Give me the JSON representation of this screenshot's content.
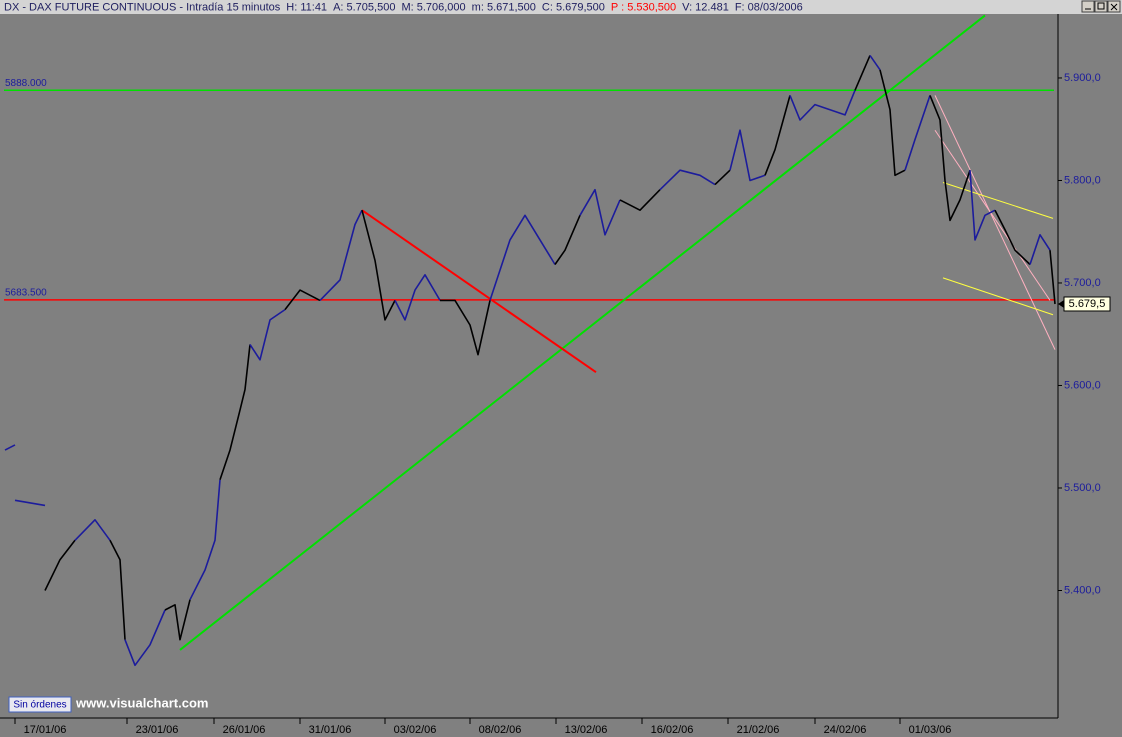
{
  "chart_data": {
    "type": "line",
    "title": "DX - DAX FUTURE CONTINUOUS - Intradía 15 minutos",
    "stats": [
      {
        "text": "H: 11:41",
        "color": "#202060"
      },
      {
        "text": "A: 5.705,500",
        "color": "#202060"
      },
      {
        "text": "M: 5.706,000",
        "color": "#202060"
      },
      {
        "text": "m: 5.671,500",
        "color": "#202060"
      },
      {
        "text": "C: 5.679,500",
        "color": "#202060"
      },
      {
        "text": "P : 5.530,500",
        "color": "#ff0000"
      },
      {
        "text": "V: 12.481",
        "color": "#202060"
      },
      {
        "text": "F: 08/03/2006",
        "color": "#202060"
      }
    ],
    "xlim": [
      0,
      105.7
    ],
    "ylim": [
      5275.6,
      5962.4
    ],
    "xticks": [
      {
        "value": 4.5,
        "label": "17/01/06"
      },
      {
        "value": 15.7,
        "label": "23/01/06"
      },
      {
        "value": 24.4,
        "label": "26/01/06"
      },
      {
        "value": 33.0,
        "label": "31/01/06"
      },
      {
        "value": 41.5,
        "label": "03/02/06"
      },
      {
        "value": 50.0,
        "label": "08/02/06"
      },
      {
        "value": 58.6,
        "label": "13/02/06"
      },
      {
        "value": 67.2,
        "label": "16/02/06"
      },
      {
        "value": 75.8,
        "label": "21/02/06"
      },
      {
        "value": 84.5,
        "label": "24/02/06"
      },
      {
        "value": 93.0,
        "label": "01/03/06"
      }
    ],
    "yticks": [
      {
        "value": 5400,
        "label": "5.400,0"
      },
      {
        "value": 5500,
        "label": "5.500,0"
      },
      {
        "value": 5600,
        "label": "5.600,0"
      },
      {
        "value": 5700,
        "label": "5.700,0"
      },
      {
        "value": 5800,
        "label": "5.800,0"
      },
      {
        "value": 5900,
        "label": "5.900,0"
      }
    ],
    "last_price": {
      "value": 5679.5,
      "label": "5.679,5"
    },
    "series": [
      {
        "color": "#1c1c9c",
        "x": [
          0.5,
          1.5
        ],
        "values": [
          5537,
          5542
        ]
      },
      {
        "color": "#1c1c9c",
        "x": [
          1.5,
          4.5
        ],
        "values": [
          5488,
          5483
        ]
      },
      {
        "color": "#000000",
        "x": [
          4.5,
          6.0,
          7.5
        ],
        "values": [
          5400,
          5430,
          5449
        ]
      },
      {
        "color": "#1c1c9c",
        "x": [
          7.5,
          9.5,
          11.0
        ],
        "values": [
          5449,
          5469,
          5449
        ]
      },
      {
        "color": "#000000",
        "x": [
          11.0,
          12.0,
          12.5
        ],
        "values": [
          5449,
          5430,
          5352
        ]
      },
      {
        "color": "#1c1c9c",
        "x": [
          12.5,
          13.5,
          15.0,
          16.5
        ],
        "values": [
          5352,
          5327,
          5347,
          5381
        ]
      },
      {
        "color": "#000000",
        "x": [
          16.5,
          17.5,
          18.0,
          19.0
        ],
        "values": [
          5381,
          5386,
          5352,
          5391
        ]
      },
      {
        "color": "#1c1c9c",
        "x": [
          19.0,
          20.5,
          21.5,
          22.0
        ],
        "values": [
          5391,
          5420,
          5449,
          5508
        ]
      },
      {
        "color": "#000000",
        "x": [
          22.0,
          23.0,
          24.0,
          24.5,
          25.0
        ],
        "values": [
          5508,
          5537,
          5576,
          5596,
          5640
        ]
      },
      {
        "color": "#1c1c9c",
        "x": [
          25.0,
          26.0,
          27.0,
          28.5
        ],
        "values": [
          5640,
          5625,
          5664,
          5674
        ]
      },
      {
        "color": "#000000",
        "x": [
          28.5,
          30.0,
          32.0
        ],
        "values": [
          5674,
          5693,
          5683
        ]
      },
      {
        "color": "#1c1c9c",
        "x": [
          32.0,
          34.0,
          35.5,
          36.2
        ],
        "values": [
          5683,
          5703,
          5757,
          5771
        ]
      },
      {
        "color": "#000000",
        "x": [
          36.2,
          37.5,
          38.5,
          39.5
        ],
        "values": [
          5771,
          5722,
          5664,
          5683
        ]
      },
      {
        "color": "#1c1c9c",
        "x": [
          39.5,
          40.5,
          41.5,
          42.5,
          44.0
        ],
        "values": [
          5683,
          5664,
          5693,
          5708,
          5683
        ]
      },
      {
        "color": "#000000",
        "x": [
          44.0,
          45.5,
          47.0,
          47.8,
          49.0
        ],
        "values": [
          5683,
          5683,
          5659,
          5630,
          5683
        ]
      },
      {
        "color": "#1c1c9c",
        "x": [
          49.0,
          51.0,
          52.5,
          54.0,
          55.5
        ],
        "values": [
          5683,
          5742,
          5766,
          5742,
          5718
        ]
      },
      {
        "color": "#000000",
        "x": [
          55.5,
          56.5,
          58.0
        ],
        "values": [
          5718,
          5732,
          5766
        ]
      },
      {
        "color": "#1c1c9c",
        "x": [
          58.0,
          59.5,
          60.5,
          62.0
        ],
        "values": [
          5766,
          5791,
          5747,
          5781
        ]
      },
      {
        "color": "#000000",
        "x": [
          62.0,
          64.0,
          66.0
        ],
        "values": [
          5781,
          5771,
          5791
        ]
      },
      {
        "color": "#1c1c9c",
        "x": [
          66.0,
          68.0,
          70.0,
          71.5
        ],
        "values": [
          5791,
          5810,
          5805,
          5796
        ]
      },
      {
        "color": "#000000",
        "x": [
          71.5,
          73.0
        ],
        "values": [
          5796,
          5810
        ]
      },
      {
        "color": "#1c1c9c",
        "x": [
          73.0,
          74.0,
          75.0,
          76.5
        ],
        "values": [
          5810,
          5849,
          5800,
          5805
        ]
      },
      {
        "color": "#000000",
        "x": [
          76.5,
          77.5,
          79.0
        ],
        "values": [
          5805,
          5830,
          5883
        ]
      },
      {
        "color": "#1c1c9c",
        "x": [
          79.0,
          80.0,
          81.5,
          83.0,
          84.5,
          85.5
        ],
        "values": [
          5883,
          5859,
          5874,
          5869,
          5864,
          5888
        ]
      },
      {
        "color": "#000000",
        "x": [
          85.5,
          87.0
        ],
        "values": [
          5888,
          5922
        ]
      },
      {
        "color": "#1c1c9c",
        "x": [
          87.0,
          88.0
        ],
        "values": [
          5922,
          5908
        ]
      },
      {
        "color": "#000000",
        "x": [
          88.0,
          89.0,
          89.5,
          90.5
        ],
        "values": [
          5908,
          5869,
          5805,
          5810
        ]
      },
      {
        "color": "#1c1c9c",
        "x": [
          90.5,
          91.5,
          93.0
        ],
        "values": [
          5810,
          5840,
          5883
        ]
      },
      {
        "color": "#000000",
        "x": [
          93.0,
          94.0,
          94.5,
          95.0,
          96.0,
          97.0
        ],
        "values": [
          5883,
          5859,
          5800,
          5761,
          5781,
          5810
        ]
      },
      {
        "color": "#1c1c9c",
        "x": [
          97.0,
          97.5,
          98.5,
          99.5
        ],
        "values": [
          5810,
          5742,
          5766,
          5771
        ]
      },
      {
        "color": "#000000",
        "x": [
          99.5,
          100.5,
          101.5,
          103.0
        ],
        "values": [
          5771,
          5752,
          5732,
          5718
        ]
      },
      {
        "color": "#1c1c9c",
        "x": [
          103.0,
          104.0,
          105.0
        ],
        "values": [
          5718,
          5747,
          5732
        ]
      },
      {
        "color": "#000000",
        "x": [
          105.0,
          105.5
        ],
        "values": [
          5732,
          5679.5
        ]
      }
    ],
    "hlines": [
      {
        "value": 5888,
        "label": "5888.000",
        "color": "#00e000"
      },
      {
        "value": 5683.5,
        "label": "5683.500",
        "color": "#ff0000"
      }
    ],
    "trendlines": [
      {
        "color": "#00e000",
        "x": [
          18.0,
          98.5
        ],
        "values": [
          5342,
          5961
        ]
      },
      {
        "color": "#ff0000",
        "x": [
          36.2,
          59.6
        ],
        "values": [
          5771,
          5613
        ]
      },
      {
        "color": "#ffb0c0",
        "x": [
          93.5,
          105.5
        ],
        "values": [
          5883,
          5635
        ]
      },
      {
        "color": "#ffb0c0",
        "x": [
          93.5,
          105.0
        ],
        "values": [
          5849,
          5683
        ]
      },
      {
        "color": "#ffff40",
        "x": [
          94.3,
          105.3
        ],
        "values": [
          5798,
          5763
        ]
      },
      {
        "color": "#ffff40",
        "x": [
          94.3,
          105.3
        ],
        "values": [
          5705,
          5669
        ]
      }
    ]
  },
  "ui": {
    "status_button": "Sin órdenes",
    "watermark": "www.visualchart.com"
  }
}
